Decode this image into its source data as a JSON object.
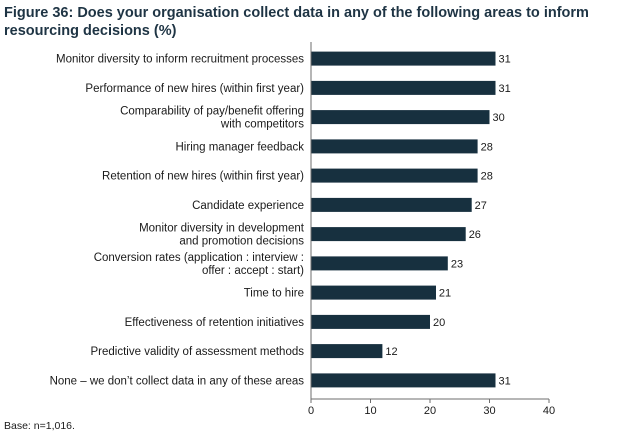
{
  "chart_data": {
    "type": "bar",
    "orientation": "horizontal",
    "title": "Figure 36: Does your organisation collect data in any of the following areas to inform resourcing decisions (%)",
    "categories": [
      [
        "Monitor diversity to inform recruitment processes"
      ],
      [
        "Performance of new hires (within first year)"
      ],
      [
        "Comparability of pay/benefit offering",
        "with competitors"
      ],
      [
        "Hiring manager feedback"
      ],
      [
        "Retention of new hires (within first year)"
      ],
      [
        "Candidate experience"
      ],
      [
        "Monitor diversity in development",
        "and promotion decisions"
      ],
      [
        "Conversion rates (application : interview :",
        "offer : accept : start)"
      ],
      [
        "Time to hire"
      ],
      [
        "Effectiveness of retention initiatives"
      ],
      [
        "Predictive validity of assessment methods"
      ],
      [
        "None – we don’t collect data in any of these areas"
      ]
    ],
    "values": [
      31,
      31,
      30,
      28,
      28,
      27,
      26,
      23,
      21,
      20,
      12,
      31
    ],
    "xlim": [
      0,
      40
    ],
    "xticks": [
      0,
      10,
      20,
      30,
      40
    ],
    "bar_color": "#17303f",
    "grid": false,
    "footnote": "Base: n=1,016."
  }
}
